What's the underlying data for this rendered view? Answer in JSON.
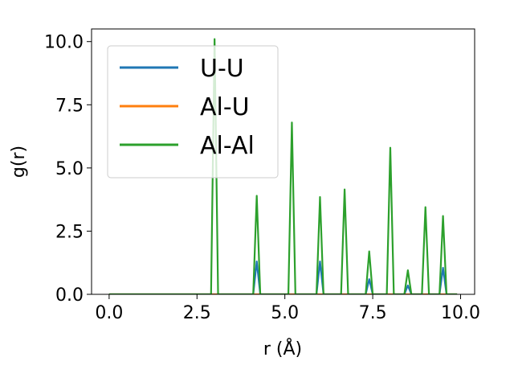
{
  "chart_data": {
    "type": "line",
    "xlabel": "r (Å)",
    "ylabel": "g(r)",
    "xlim": [
      -0.5,
      10.4
    ],
    "ylim": [
      0,
      10.5
    ],
    "xticks": [
      0.0,
      2.5,
      5.0,
      7.5,
      10.0
    ],
    "xtick_labels": [
      "0.0",
      "2.5",
      "5.0",
      "7.5",
      "10.0"
    ],
    "yticks": [
      0.0,
      2.5,
      5.0,
      7.5,
      10.0
    ],
    "ytick_labels": [
      "0.0",
      "2.5",
      "5.0",
      "7.5",
      "10.0"
    ],
    "grid": false,
    "legend": "top-left",
    "r_range": [
      0.0,
      9.9
    ],
    "series": [
      {
        "name": "U-U",
        "color": "#1f77b4",
        "peaks": [
          {
            "r": 4.2,
            "g": 1.3
          },
          {
            "r": 6.0,
            "g": 1.3
          },
          {
            "r": 7.4,
            "g": 0.6
          },
          {
            "r": 8.5,
            "g": 0.35
          },
          {
            "r": 9.5,
            "g": 1.05
          }
        ]
      },
      {
        "name": "Al-U",
        "color": "#ff7f0e",
        "peaks": []
      },
      {
        "name": "Al-Al",
        "color": "#2ca02c",
        "peaks": [
          {
            "r": 3.0,
            "g": 10.1
          },
          {
            "r": 4.2,
            "g": 3.9
          },
          {
            "r": 5.2,
            "g": 6.8
          },
          {
            "r": 6.0,
            "g": 3.85
          },
          {
            "r": 6.7,
            "g": 4.15
          },
          {
            "r": 7.4,
            "g": 1.7
          },
          {
            "r": 8.0,
            "g": 5.8
          },
          {
            "r": 8.5,
            "g": 0.95
          },
          {
            "r": 9.0,
            "g": 3.45
          },
          {
            "r": 9.5,
            "g": 3.1
          }
        ]
      }
    ]
  }
}
